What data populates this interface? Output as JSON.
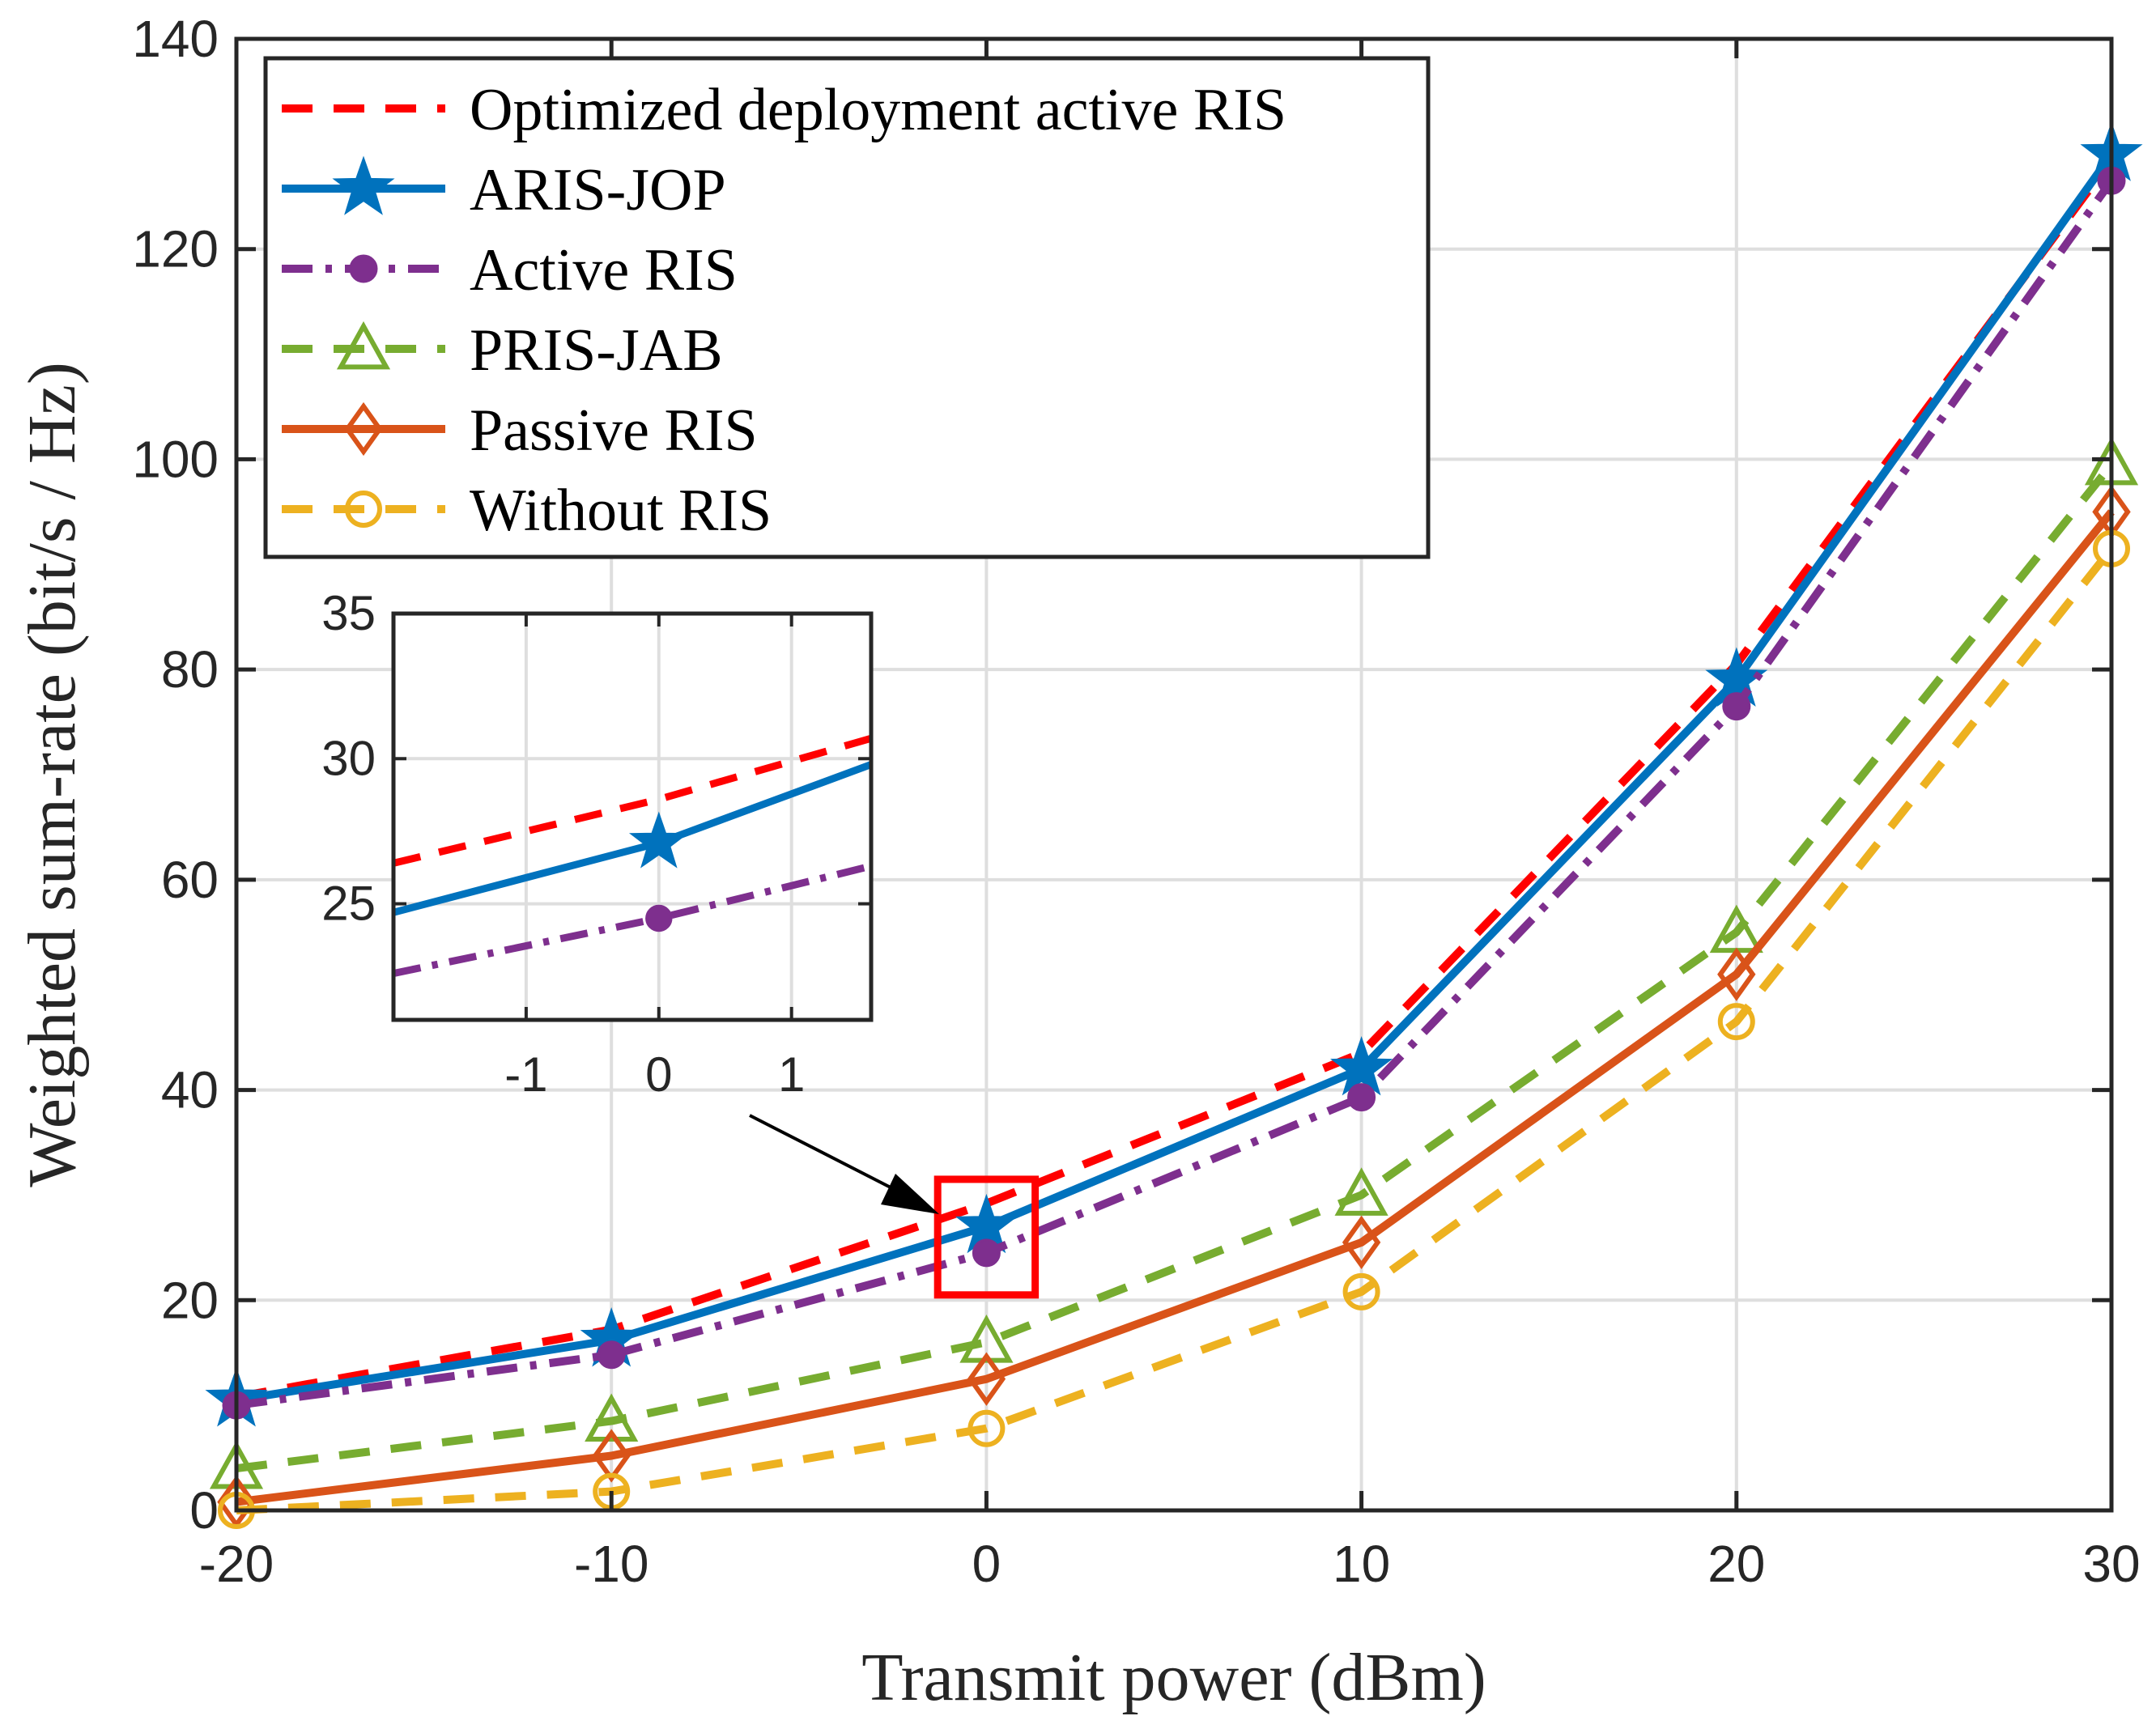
{
  "chart_data": {
    "type": "line",
    "xlabel": "Transmit power (dBm)",
    "ylabel": "Weighted sum-rate (bit/s / Hz)",
    "x": [
      -20,
      -10,
      0,
      10,
      20,
      30
    ],
    "xlim": [
      -20,
      30
    ],
    "ylim": [
      0,
      140
    ],
    "xticks": [
      "-20",
      "-10",
      "0",
      "10",
      "20",
      "30"
    ],
    "yticks": [
      "0",
      "20",
      "40",
      "60",
      "80",
      "100",
      "120",
      "140"
    ],
    "grid": true,
    "legend_position": "top-left",
    "series": [
      {
        "name": "Optimized deployment active RIS",
        "color": "#FF0000",
        "dash": "dashed",
        "marker": "none",
        "values": [
          10.8,
          17.2,
          29.2,
          43.5,
          80.5,
          128.5
        ]
      },
      {
        "name": "ARIS-JOP",
        "color": "#0072BD",
        "dash": "solid",
        "marker": "star",
        "values": [
          10.5,
          16.2,
          27.0,
          42.0,
          79.0,
          129.0
        ]
      },
      {
        "name": "Active RIS",
        "color": "#7E2F8E",
        "dash": "dashdot",
        "marker": "dot",
        "values": [
          10.0,
          14.8,
          24.5,
          39.3,
          76.5,
          126.5
        ]
      },
      {
        "name": "PRIS-JAB",
        "color": "#77AC30",
        "dash": "dashed",
        "marker": "triangle",
        "values": [
          4.0,
          8.5,
          16.0,
          30.0,
          55.0,
          99.5
        ]
      },
      {
        "name": "Passive RIS",
        "color": "#D95319",
        "dash": "solid",
        "marker": "diamond",
        "values": [
          0.8,
          5.2,
          12.5,
          25.5,
          51.0,
          95.0
        ]
      },
      {
        "name": "Without RIS",
        "color": "#EDB120",
        "dash": "dashed",
        "marker": "circle",
        "values": [
          0.0,
          1.8,
          7.8,
          20.8,
          46.5,
          91.5
        ]
      }
    ],
    "zoom_box": {
      "x_range": [
        -1.3,
        1.3
      ],
      "y_range": [
        20.5,
        31.5
      ],
      "color": "#FF0000"
    },
    "inset": {
      "xlim": [
        -2,
        1.6
      ],
      "ylim": [
        21,
        35
      ],
      "xticks": [
        "-1",
        "0",
        "1"
      ],
      "yticks": [
        "25",
        "30",
        "35"
      ],
      "series": [
        {
          "name": "Optimized deployment active RIS",
          "color": "#FF0000",
          "dash": "dashed",
          "marker": "none",
          "points": [
            [
              -2,
              26.4
            ],
            [
              0,
              28.6
            ],
            [
              1.6,
              30.7
            ]
          ]
        },
        {
          "name": "ARIS-JOP",
          "color": "#0072BD",
          "dash": "solid",
          "marker": "star",
          "points": [
            [
              -2,
              24.7
            ],
            [
              0,
              27.1
            ],
            [
              1.6,
              29.8
            ]
          ]
        },
        {
          "name": "Active RIS",
          "color": "#7E2F8E",
          "dash": "dashdot",
          "marker": "dot",
          "points": [
            [
              -2,
              22.6
            ],
            [
              0,
              24.5
            ],
            [
              1.6,
              26.3
            ]
          ]
        }
      ]
    }
  }
}
